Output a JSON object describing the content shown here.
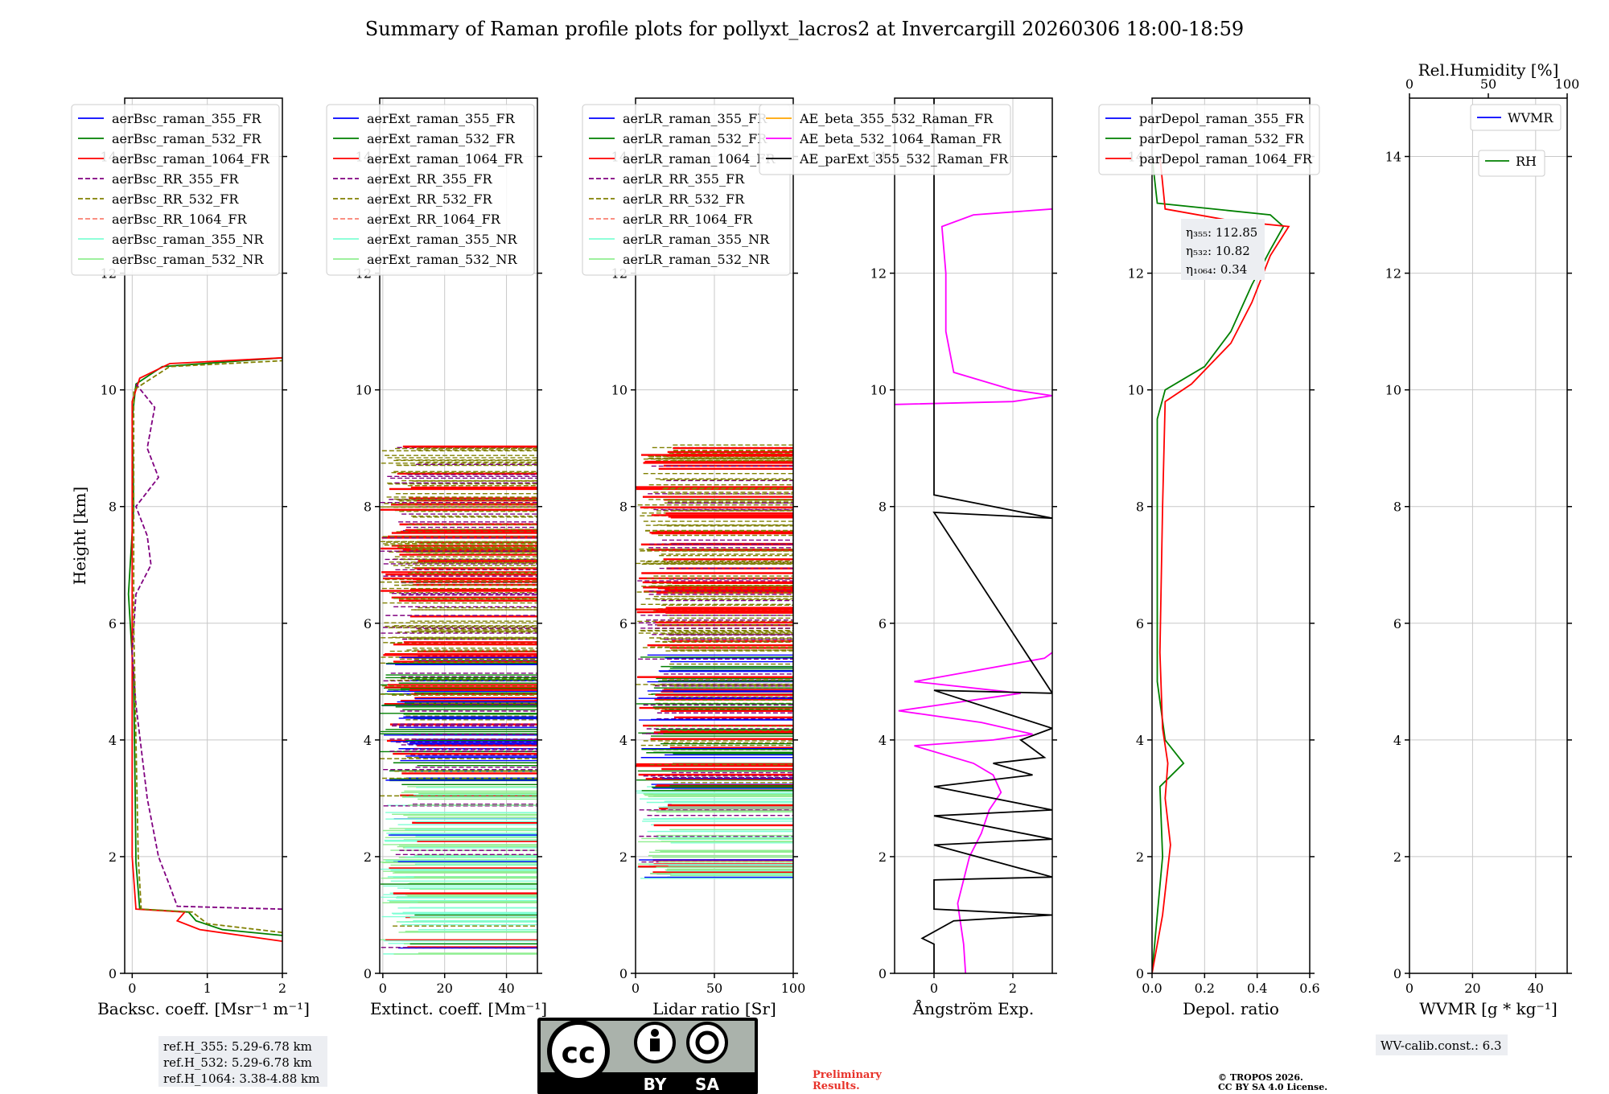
{
  "title": "Summary of Raman profile plots for pollyxt_lacros2 at Invercargill 20260306 18:00-18:59",
  "ylabel": "Height [km]",
  "colors": {
    "blue": "#0000ff",
    "green": "#008000",
    "red": "#ff0000",
    "purple": "#800080",
    "olive": "#808000",
    "salmon": "#fa8072",
    "cyan": "#7fffd4",
    "lightgreen": "#90ee90",
    "orange": "#ffa500",
    "magenta": "#ff00ff",
    "black": "#000000"
  },
  "chart_data": [
    {
      "id": "bsc",
      "type": "line",
      "xlabel": "Backsc. coeff. [Msr⁻¹ m⁻¹]",
      "xlim": [
        -0.1,
        2
      ],
      "ylim": [
        0,
        15
      ],
      "xticks": [
        "0",
        "1",
        "2"
      ],
      "xtickvals": [
        0,
        1,
        2
      ],
      "yticks": [
        "0",
        "2",
        "4",
        "6",
        "8",
        "10",
        "12",
        "14"
      ],
      "legend": [
        "aerBsc_raman_355_FR",
        "aerBsc_raman_532_FR",
        "aerBsc_raman_1064_FR",
        "aerBsc_RR_355_FR",
        "aerBsc_RR_532_FR",
        "aerBsc_RR_1064_FR",
        "aerBsc_raman_355_NR",
        "aerBsc_raman_532_NR"
      ],
      "legend_colors": [
        "blue",
        "green",
        "red",
        "purple",
        "olive",
        "salmon",
        "cyan",
        "lightgreen"
      ],
      "legend_dashed": [
        false,
        false,
        false,
        true,
        true,
        true,
        false,
        false
      ],
      "series": [
        {
          "name": "aerBsc_raman_532_FR",
          "color": "green",
          "points": [
            [
              2,
              0.65
            ],
            [
              1.2,
              0.75
            ],
            [
              0.85,
              0.9
            ],
            [
              0.75,
              1.05
            ],
            [
              0.1,
              1.1
            ],
            [
              0.05,
              1.9
            ],
            [
              0.04,
              3
            ],
            [
              0.02,
              5
            ],
            [
              -0.05,
              6.5
            ],
            [
              0.02,
              8
            ],
            [
              0.0,
              9.5
            ],
            [
              0.05,
              10.1
            ],
            [
              0.4,
              10.4
            ],
            [
              2,
              10.55
            ]
          ]
        },
        {
          "name": "aerBsc_raman_1064_FR",
          "color": "red",
          "points": [
            [
              2,
              0.55
            ],
            [
              0.9,
              0.75
            ],
            [
              0.6,
              0.9
            ],
            [
              0.7,
              1.05
            ],
            [
              0.05,
              1.1
            ],
            [
              0.0,
              2
            ],
            [
              0.0,
              4
            ],
            [
              0.0,
              6
            ],
            [
              0.0,
              8
            ],
            [
              0.0,
              9.8
            ],
            [
              0.1,
              10.2
            ],
            [
              0.5,
              10.45
            ],
            [
              2,
              10.55
            ]
          ]
        },
        {
          "name": "aerBsc_RR_355_FR",
          "color": "purple",
          "dashed": true,
          "points": [
            [
              2,
              1.1
            ],
            [
              0.6,
              1.15
            ],
            [
              0.5,
              1.5
            ],
            [
              0.35,
              2.0
            ],
            [
              0.2,
              3
            ],
            [
              0.05,
              4.6
            ],
            [
              0.0,
              5.5
            ],
            [
              0.05,
              6.5
            ],
            [
              0.25,
              7.0
            ],
            [
              0.2,
              7.5
            ],
            [
              0.05,
              8.0
            ],
            [
              0.35,
              8.5
            ],
            [
              0.2,
              9.0
            ],
            [
              0.3,
              9.7
            ],
            [
              0.05,
              10.1
            ]
          ]
        },
        {
          "name": "aerBsc_RR_532_FR",
          "color": "olive",
          "dashed": true,
          "points": [
            [
              2,
              0.7
            ],
            [
              1.0,
              0.85
            ],
            [
              0.8,
              1.05
            ],
            [
              0.12,
              1.1
            ],
            [
              0.08,
              2
            ],
            [
              0.05,
              4
            ],
            [
              0.02,
              6
            ],
            [
              0.02,
              8
            ],
            [
              0.02,
              10
            ],
            [
              0.5,
              10.4
            ],
            [
              2,
              10.5
            ]
          ]
        }
      ]
    },
    {
      "id": "ext",
      "type": "line",
      "xlabel": "Extinct. coeff. [Mm⁻¹]",
      "xlim": [
        -1,
        50
      ],
      "ylim": [
        0,
        15
      ],
      "xticks": [
        "0",
        "20",
        "40"
      ],
      "xtickvals": [
        0,
        20,
        40
      ],
      "yticks": [
        "0",
        "2",
        "4",
        "6",
        "8",
        "10",
        "12",
        "14"
      ],
      "legend": [
        "aerExt_raman_355_FR",
        "aerExt_raman_532_FR",
        "aerExt_raman_1064_FR",
        "aerExt_RR_355_FR",
        "aerExt_RR_532_FR",
        "aerExt_RR_1064_FR",
        "aerExt_raman_355_NR",
        "aerExt_raman_532_NR"
      ],
      "legend_colors": [
        "blue",
        "green",
        "red",
        "purple",
        "olive",
        "salmon",
        "cyan",
        "lightgreen"
      ],
      "legend_dashed": [
        false,
        false,
        false,
        true,
        true,
        true,
        false,
        false
      ],
      "noise": true
    },
    {
      "id": "lr",
      "type": "line",
      "xlabel": "Lidar ratio [Sr]",
      "xlim": [
        0,
        100
      ],
      "ylim": [
        0,
        15
      ],
      "xticks": [
        "0",
        "50",
        "100"
      ],
      "xtickvals": [
        0,
        50,
        100
      ],
      "yticks": [
        "0",
        "2",
        "4",
        "6",
        "8",
        "10",
        "12",
        "14"
      ],
      "legend": [
        "aerLR_raman_355_FR",
        "aerLR_raman_532_FR",
        "aerLR_raman_1064_FR",
        "aerLR_RR_355_FR",
        "aerLR_RR_532_FR",
        "aerLR_RR_1064_FR",
        "aerLR_raman_355_NR",
        "aerLR_raman_532_NR"
      ],
      "legend_colors": [
        "blue",
        "green",
        "red",
        "purple",
        "olive",
        "salmon",
        "cyan",
        "lightgreen"
      ],
      "legend_dashed": [
        false,
        false,
        false,
        true,
        true,
        true,
        false,
        false
      ],
      "noise": true
    },
    {
      "id": "ae",
      "type": "line",
      "xlabel": "Ångström Exp.",
      "xlim": [
        -1,
        3
      ],
      "ylim": [
        0,
        15
      ],
      "xticks": [
        "0",
        "2"
      ],
      "xtickvals": [
        0,
        2
      ],
      "yticks": [
        "0",
        "2",
        "4",
        "6",
        "8",
        "10",
        "12",
        "14"
      ],
      "legend": [
        "AE_beta_355_532_Raman_FR",
        "AE_beta_532_1064_Raman_FR",
        "AE_parExt_355_532_Raman_FR"
      ],
      "legend_colors": [
        "orange",
        "magenta",
        "black"
      ],
      "legend_dashed": [
        false,
        false,
        false
      ],
      "series": [
        {
          "name": "AE_beta_532_1064_Raman_FR",
          "color": "magenta",
          "points": [
            [
              0.8,
              0
            ],
            [
              0.75,
              0.5
            ],
            [
              0.6,
              1.2
            ],
            [
              0.9,
              2
            ],
            [
              1.2,
              2.4
            ],
            [
              1.4,
              2.8
            ],
            [
              1.7,
              3.1
            ],
            [
              1.5,
              3.4
            ],
            [
              1.0,
              3.6
            ],
            [
              -0.5,
              3.9
            ],
            [
              1.5,
              4.0
            ],
            [
              2.5,
              4.1
            ],
            [
              1.2,
              4.3
            ],
            [
              -0.9,
              4.5
            ],
            [
              2.2,
              4.8
            ],
            [
              -0.5,
              5.0
            ],
            [
              2.8,
              5.4
            ],
            [
              3,
              5.5
            ]
          ]
        },
        {
          "name": "AE_beta_532_1064_Raman_FR (upper)",
          "color": "magenta",
          "points": [
            [
              -1,
              9.75
            ],
            [
              2,
              9.8
            ],
            [
              3,
              9.9
            ],
            [
              2,
              10.0
            ],
            [
              0.5,
              10.3
            ],
            [
              0.3,
              11
            ],
            [
              0.3,
              12
            ],
            [
              0.2,
              12.8
            ],
            [
              1.0,
              13.0
            ],
            [
              3,
              13.1
            ]
          ]
        },
        {
          "name": "AE_parExt_355_532_Raman_FR",
          "color": "black",
          "points": [
            [
              0,
              0
            ],
            [
              0,
              0.5
            ],
            [
              -0.3,
              0.6
            ],
            [
              0.5,
              0.9
            ],
            [
              3,
              1.0
            ],
            [
              0,
              1.1
            ],
            [
              0,
              1.6
            ],
            [
              3,
              1.65
            ],
            [
              0,
              2.2
            ],
            [
              3,
              2.3
            ],
            [
              0,
              2.7
            ],
            [
              3,
              2.8
            ],
            [
              0,
              3.2
            ],
            [
              2.5,
              3.4
            ],
            [
              1.5,
              3.6
            ],
            [
              2.8,
              3.7
            ],
            [
              2.2,
              4.0
            ],
            [
              3,
              4.2
            ],
            [
              0,
              4.85
            ],
            [
              3,
              4.8
            ],
            [
              0,
              7.9
            ],
            [
              3,
              7.8
            ],
            [
              0,
              8.2
            ],
            [
              0,
              15
            ]
          ]
        }
      ]
    },
    {
      "id": "dep",
      "type": "line",
      "xlabel": "Depol. ratio",
      "xlim": [
        0,
        0.6
      ],
      "ylim": [
        0,
        15
      ],
      "xticks": [
        "0.0",
        "0.2",
        "0.4",
        "0.6"
      ],
      "xtickvals": [
        0,
        0.2,
        0.4,
        0.6
      ],
      "yticks": [
        "0",
        "2",
        "4",
        "6",
        "8",
        "10",
        "12",
        "14"
      ],
      "legend": [
        "parDepol_raman_355_FR",
        "parDepol_raman_532_FR",
        "parDepol_raman_1064_FR"
      ],
      "legend_colors": [
        "blue",
        "green",
        "red"
      ],
      "legend_dashed": [
        false,
        false,
        false
      ],
      "annotation": [
        "η₃₅₅: 112.85",
        "η₅₃₂: 10.82",
        "η₁₀₆₄: 0.34"
      ],
      "series": [
        {
          "name": "parDepol_raman_532_FR",
          "color": "green",
          "points": [
            [
              0,
              0
            ],
            [
              0.02,
              1.0
            ],
            [
              0.04,
              2
            ],
            [
              0.03,
              3.2
            ],
            [
              0.12,
              3.6
            ],
            [
              0.05,
              4
            ],
            [
              0.02,
              5
            ],
            [
              0.02,
              7
            ],
            [
              0.02,
              9.5
            ],
            [
              0.05,
              10
            ],
            [
              0.2,
              10.4
            ],
            [
              0.3,
              11.0
            ],
            [
              0.38,
              11.8
            ],
            [
              0.45,
              12.4
            ],
            [
              0.5,
              12.8
            ],
            [
              0.45,
              13
            ],
            [
              0.02,
              13.2
            ],
            [
              0.0,
              14
            ]
          ]
        },
        {
          "name": "parDepol_raman_1064_FR",
          "color": "red",
          "points": [
            [
              0,
              0
            ],
            [
              0.04,
              1.0
            ],
            [
              0.07,
              2.2
            ],
            [
              0.05,
              3.0
            ],
            [
              0.06,
              3.6
            ],
            [
              0.04,
              4.2
            ],
            [
              0.03,
              5.5
            ],
            [
              0.04,
              8
            ],
            [
              0.05,
              9.8
            ],
            [
              0.15,
              10.1
            ],
            [
              0.3,
              10.8
            ],
            [
              0.38,
              11.5
            ],
            [
              0.45,
              12.3
            ],
            [
              0.52,
              12.8
            ],
            [
              0.3,
              12.9
            ],
            [
              0.05,
              13.1
            ],
            [
              0.03,
              14
            ]
          ]
        }
      ]
    },
    {
      "id": "wv",
      "type": "line",
      "xlabel": "WVMR [g * kg⁻¹]",
      "top_xlabel": "Rel.Humidity [%]",
      "xlim": [
        0,
        50
      ],
      "ylim": [
        0,
        15
      ],
      "xticks": [
        "0",
        "20",
        "40"
      ],
      "xtickvals": [
        0,
        20,
        40
      ],
      "top_xticks": [
        "0",
        "50",
        "100"
      ],
      "top_xtickvals": [
        0,
        50,
        100
      ],
      "yticks": [
        "0",
        "2",
        "4",
        "6",
        "8",
        "10",
        "12",
        "14"
      ],
      "legend": [
        "WVMR"
      ],
      "legend_colors": [
        "blue"
      ],
      "legend_dashed": [
        false
      ],
      "legend2": [
        "RH"
      ],
      "legend2_colors": [
        "green"
      ],
      "series": []
    }
  ],
  "info_left": [
    "ref.H_355: 5.29-6.78 km",
    "ref.H_532: 5.29-6.78 km",
    "ref.H_1064: 3.38-4.88 km"
  ],
  "info_right": "WV-calib.const.: 6.3",
  "preliminary": [
    "Preliminary",
    "Results."
  ],
  "copyright": [
    "© TROPOS 2026.",
    "CC BY SA 4.0 License."
  ],
  "cc_badge": {
    "by": "BY",
    "sa": "SA"
  }
}
